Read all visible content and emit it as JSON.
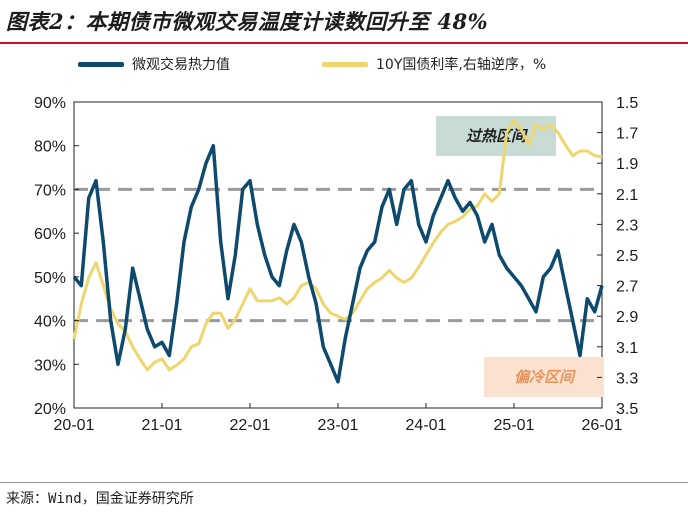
{
  "figure": {
    "title": "图表2：本期债市微观交易温度计读数回升至 48%",
    "source": "来源：Wind，国金证券研究所"
  },
  "chart_data": {
    "type": "line",
    "x_ticks": [
      "20-01",
      "21-01",
      "22-01",
      "23-01",
      "24-01",
      "25-01",
      "26-01"
    ],
    "y_left": {
      "ticks": [
        "20%",
        "30%",
        "40%",
        "50%",
        "60%",
        "70%",
        "80%",
        "90%"
      ],
      "range": [
        20,
        90
      ]
    },
    "y_right": {
      "ticks": [
        "1.5",
        "1.7",
        "1.9",
        "2.1",
        "2.3",
        "2.5",
        "2.7",
        "2.9",
        "3.1",
        "3.3",
        "3.5"
      ],
      "range": [
        3.5,
        1.5
      ],
      "inverted": true
    },
    "reference_lines_left": [
      70,
      40
    ],
    "annotations": [
      "过热区间",
      "偏冷区间"
    ],
    "series": [
      {
        "name": "微观交易热力值",
        "axis": "left",
        "color": "#0d4a6e",
        "x": [
          "2020-01",
          "2020-02",
          "2020-03",
          "2020-04",
          "2020-05",
          "2020-06",
          "2020-07",
          "2020-08",
          "2020-09",
          "2020-10",
          "2020-11",
          "2020-12",
          "2021-01",
          "2021-02",
          "2021-03",
          "2021-04",
          "2021-05",
          "2021-06",
          "2021-07",
          "2021-08",
          "2021-09",
          "2021-10",
          "2021-11",
          "2021-12",
          "2022-01",
          "2022-02",
          "2022-03",
          "2022-04",
          "2022-05",
          "2022-06",
          "2022-07",
          "2022-08",
          "2022-09",
          "2022-10",
          "2022-11",
          "2022-12",
          "2023-01",
          "2023-02",
          "2023-03",
          "2023-04",
          "2023-05",
          "2023-06",
          "2023-07",
          "2023-08",
          "2023-09",
          "2023-10",
          "2023-11",
          "2023-12",
          "2024-01",
          "2024-02",
          "2024-03",
          "2024-04",
          "2024-05",
          "2024-06",
          "2024-07",
          "2024-08",
          "2024-09",
          "2024-10",
          "2024-11",
          "2024-12",
          "2025-01",
          "2025-02",
          "2025-03",
          "2025-04",
          "2025-05",
          "2025-06",
          "2025-07",
          "2025-08",
          "2025-09",
          "2025-10",
          "2025-11",
          "2025-12",
          "2026-01"
        ],
        "y": [
          50,
          48,
          68,
          72,
          58,
          40,
          30,
          38,
          52,
          45,
          38,
          34,
          35,
          32,
          44,
          58,
          66,
          70,
          76,
          80,
          58,
          45,
          55,
          70,
          72,
          62,
          55,
          50,
          48,
          56,
          62,
          58,
          50,
          44,
          34,
          30,
          26,
          36,
          44,
          52,
          56,
          58,
          66,
          70,
          62,
          70,
          72,
          62,
          58,
          64,
          68,
          72,
          68,
          65,
          67,
          64,
          58,
          62,
          55,
          52,
          50,
          48,
          45,
          42,
          50,
          52,
          56,
          48,
          40,
          32,
          45,
          42,
          48
        ]
      },
      {
        "name": "10Y国债利率,右轴逆序，%",
        "axis": "right",
        "color": "#efd56e",
        "x": [
          "2020-01",
          "2020-02",
          "2020-03",
          "2020-04",
          "2020-05",
          "2020-06",
          "2020-07",
          "2020-08",
          "2020-09",
          "2020-10",
          "2020-11",
          "2020-12",
          "2021-01",
          "2021-02",
          "2021-03",
          "2021-04",
          "2021-05",
          "2021-06",
          "2021-07",
          "2021-08",
          "2021-09",
          "2021-10",
          "2021-11",
          "2021-12",
          "2022-01",
          "2022-02",
          "2022-03",
          "2022-04",
          "2022-05",
          "2022-06",
          "2022-07",
          "2022-08",
          "2022-09",
          "2022-10",
          "2022-11",
          "2022-12",
          "2023-01",
          "2023-02",
          "2023-03",
          "2023-04",
          "2023-05",
          "2023-06",
          "2023-07",
          "2023-08",
          "2023-09",
          "2023-10",
          "2023-11",
          "2023-12",
          "2024-01",
          "2024-02",
          "2024-03",
          "2024-04",
          "2024-05",
          "2024-06",
          "2024-07",
          "2024-08",
          "2024-09",
          "2024-10",
          "2024-11",
          "2024-12",
          "2025-01",
          "2025-02",
          "2025-03",
          "2025-04",
          "2025-05",
          "2025-06",
          "2025-07",
          "2025-08",
          "2025-09",
          "2025-10",
          "2025-11",
          "2025-12",
          "2026-01"
        ],
        "y": [
          3.05,
          2.82,
          2.65,
          2.55,
          2.7,
          2.85,
          2.95,
          3.0,
          3.1,
          3.18,
          3.25,
          3.2,
          3.18,
          3.25,
          3.22,
          3.18,
          3.1,
          3.08,
          2.95,
          2.88,
          2.88,
          2.98,
          2.92,
          2.82,
          2.72,
          2.8,
          2.8,
          2.8,
          2.78,
          2.82,
          2.78,
          2.7,
          2.68,
          2.72,
          2.82,
          2.88,
          2.9,
          2.92,
          2.88,
          2.8,
          2.72,
          2.68,
          2.65,
          2.6,
          2.65,
          2.68,
          2.65,
          2.58,
          2.5,
          2.42,
          2.35,
          2.3,
          2.28,
          2.25,
          2.2,
          2.18,
          2.1,
          2.15,
          2.1,
          1.7,
          1.62,
          1.68,
          1.78,
          1.65,
          1.68,
          1.65,
          1.7,
          1.78,
          1.85,
          1.82,
          1.82,
          1.85,
          1.86
        ]
      }
    ]
  }
}
